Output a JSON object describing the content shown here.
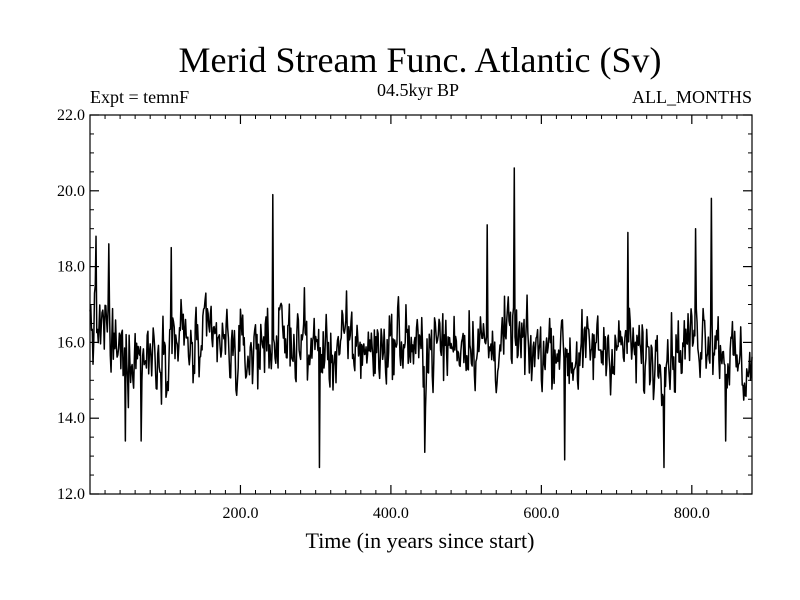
{
  "header": {
    "title": "Merid Stream Func. Atlantic (Sv)",
    "subtitle": "04.5kyr BP",
    "left_label": "Expt = temnF",
    "right_label": "ALL_MONTHS"
  },
  "colors": {
    "background": "#ffffff",
    "line": "#000000",
    "axes": "#000000"
  },
  "chart_data": {
    "type": "line",
    "title": "Merid Stream Func. Atlantic (Sv)",
    "subtitle": "04.5kyr BP",
    "xlabel": "Time (in years since start)",
    "ylabel": "",
    "xlim": [
      0,
      880
    ],
    "ylim": [
      12.0,
      22.0
    ],
    "xticks": [
      200,
      400,
      600,
      800
    ],
    "xtick_labels": [
      "200.0",
      "400.0",
      "600.0",
      "800.0"
    ],
    "yticks": [
      12,
      14,
      16,
      18,
      20,
      22
    ],
    "ytick_labels": [
      "12.0",
      "14.0",
      "16.0",
      "18.0",
      "20.0",
      "22.0"
    ],
    "grid": false,
    "series": [
      {
        "x": [
          0,
          20,
          40,
          60,
          80,
          100,
          120,
          140,
          160,
          180,
          200,
          220,
          240,
          260,
          280,
          300,
          320,
          340,
          360,
          380,
          400,
          420,
          440,
          460,
          480,
          500,
          520,
          540,
          560,
          580,
          600,
          620,
          640,
          660,
          680,
          700,
          720,
          740,
          760,
          780,
          800,
          820,
          840,
          860,
          880
        ],
        "values": [
          16.5,
          16.3,
          15.6,
          15.8,
          15.7,
          15.9,
          16.2,
          15.7,
          16.1,
          15.9,
          15.6,
          15.8,
          16.2,
          16.0,
          16.1,
          15.8,
          15.7,
          16.0,
          15.9,
          15.8,
          16.0,
          16.1,
          15.6,
          16.0,
          15.9,
          16.1,
          16.0,
          15.8,
          16.2,
          15.7,
          15.8,
          16.0,
          15.6,
          15.7,
          15.9,
          15.9,
          15.8,
          15.6,
          15.7,
          15.8,
          16.1,
          16.4,
          15.9,
          15.4,
          15.2
        ]
      }
    ],
    "extremes": {
      "max": [
        {
          "x": 8,
          "y": 18.8
        },
        {
          "x": 25,
          "y": 18.6
        },
        {
          "x": 108,
          "y": 18.5
        },
        {
          "x": 243,
          "y": 19.9
        },
        {
          "x": 528,
          "y": 19.1
        },
        {
          "x": 564,
          "y": 20.6
        },
        {
          "x": 715,
          "y": 18.9
        },
        {
          "x": 805,
          "y": 19.0
        },
        {
          "x": 826,
          "y": 19.8
        }
      ],
      "min": [
        {
          "x": 47,
          "y": 13.4
        },
        {
          "x": 68,
          "y": 13.4
        },
        {
          "x": 305,
          "y": 12.7
        },
        {
          "x": 445,
          "y": 13.1
        },
        {
          "x": 631,
          "y": 12.9
        },
        {
          "x": 763,
          "y": 12.7
        },
        {
          "x": 845,
          "y": 13.4
        }
      ]
    }
  }
}
